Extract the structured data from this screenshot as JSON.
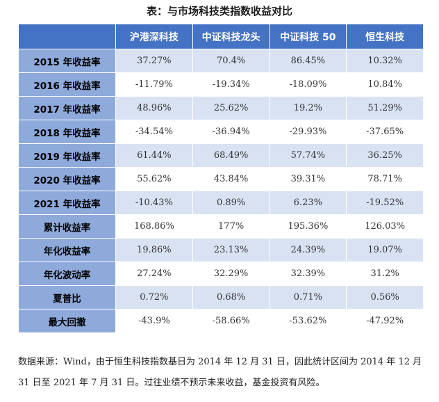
{
  "title": "表：与市场科技类指数收益对比",
  "table": {
    "header": [
      "",
      "沪港深科技",
      "中证科技龙头",
      "中证科技 50",
      "恒生科技"
    ],
    "rows": [
      {
        "label": "2015 年收益率",
        "values": [
          "37.27%",
          "70.4%",
          "86.45%",
          "10.32%"
        ]
      },
      {
        "label": "2016 年收益率",
        "values": [
          "-11.79%",
          "-19.34%",
          "-18.09%",
          "10.84%"
        ]
      },
      {
        "label": "2017 年收益率",
        "values": [
          "48.96%",
          "25.62%",
          "19.2%",
          "51.29%"
        ]
      },
      {
        "label": "2018 年收益率",
        "values": [
          "-34.54%",
          "-36.94%",
          "-29.93%",
          "-37.65%"
        ]
      },
      {
        "label": "2019 年收益率",
        "values": [
          "61.44%",
          "68.49%",
          "57.74%",
          "36.25%"
        ]
      },
      {
        "label": "2020 年收益率",
        "values": [
          "55.62%",
          "43.84%",
          "39.31%",
          "78.71%"
        ]
      },
      {
        "label": "2021 年收益率",
        "values": [
          "-10.43%",
          "0.89%",
          "6.23%",
          "-19.52%"
        ]
      },
      {
        "label": "累计收益率",
        "values": [
          "168.86%",
          "177%",
          "195.36%",
          "126.03%"
        ]
      },
      {
        "label": "年化收益率",
        "values": [
          "19.86%",
          "23.13%",
          "24.39%",
          "19.07%"
        ]
      },
      {
        "label": "年化波动率",
        "values": [
          "27.24%",
          "32.29%",
          "32.39%",
          "31.2%"
        ]
      },
      {
        "label": "夏普比",
        "values": [
          "0.72%",
          "0.68%",
          "0.71%",
          "0.56%"
        ]
      },
      {
        "label": "最大回撤",
        "values": [
          "-43.9%",
          "-58.66%",
          "-53.62%",
          "-47.92%"
        ]
      }
    ]
  },
  "note": "数据来源：Wind，由于恒生科技指数基日为 2014 年 12 月 31 日，因此统计区间为 2014 年 12 月 31 日至 2021 年 7 月 31 日。过往业绩不预示未来收益，基金投资有风险。",
  "colors": {
    "header_bg": "#4472c4",
    "row_label_bg": "#8eaadb",
    "band_bg": "#d9e2f3"
  }
}
